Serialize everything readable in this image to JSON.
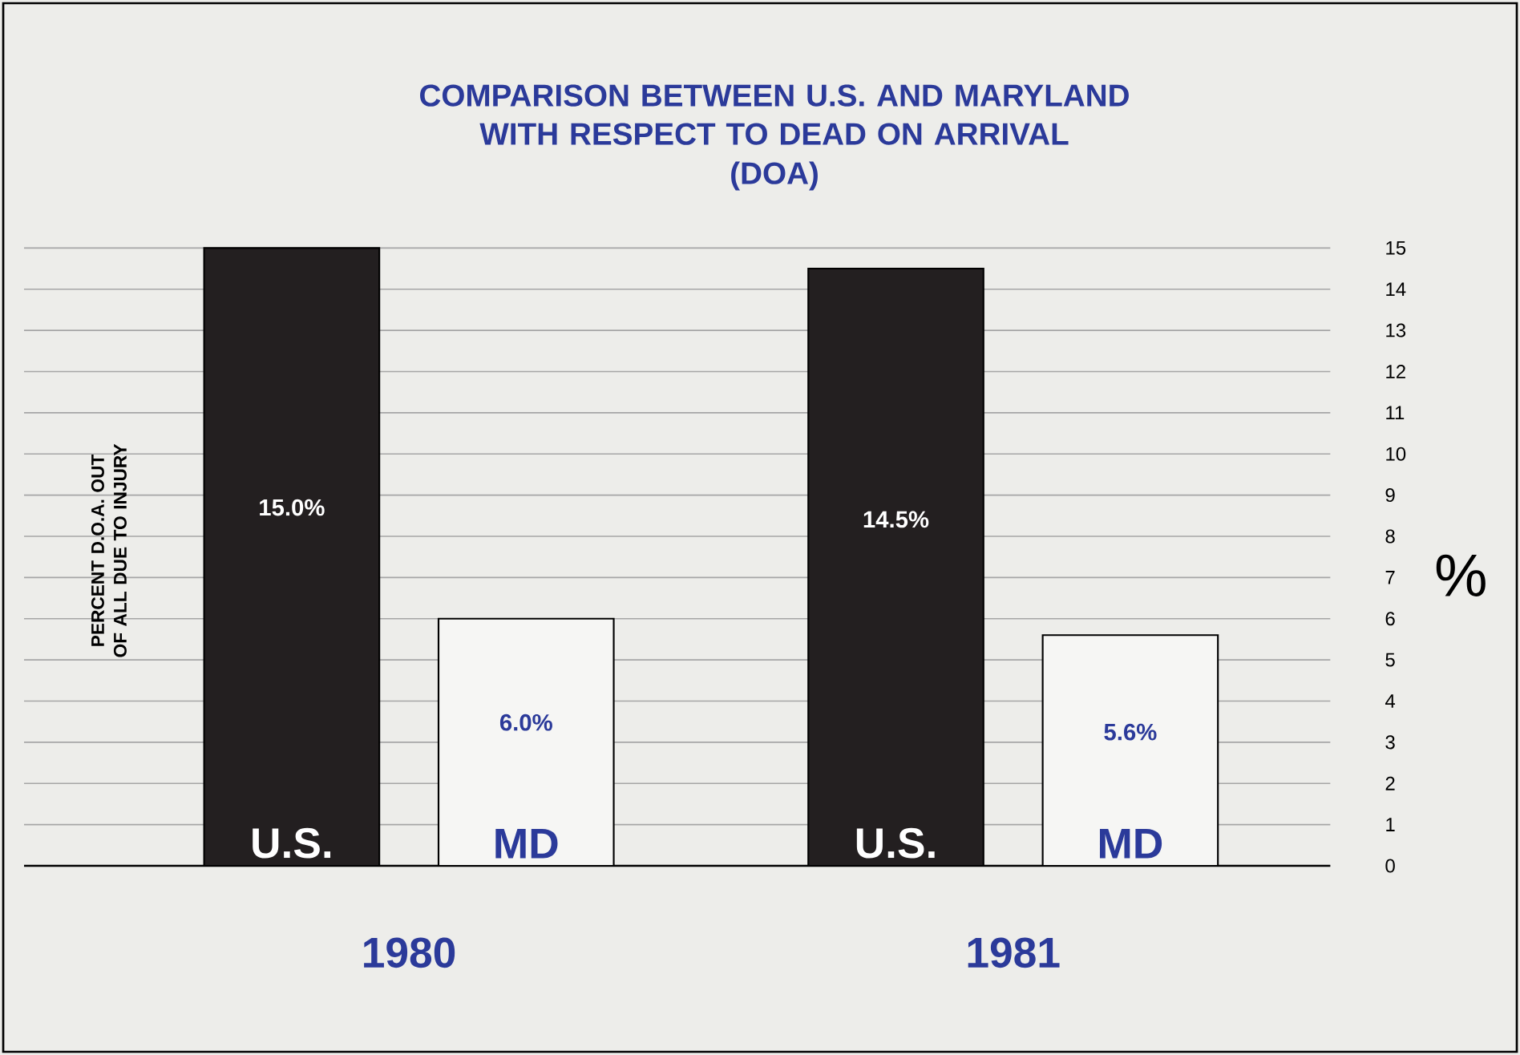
{
  "chart_data": {
    "type": "bar",
    "title": "COMPARISON BETWEEN U.S. AND MARYLAND WITH RESPECT TO DEAD ON ARRIVAL",
    "subtitle": "(DOA)",
    "ylabel": "PERCENT D.O.A. OUT OF ALL DUE TO INJURY",
    "y2label": "%",
    "categories": [
      "1980",
      "1981"
    ],
    "series": [
      {
        "name": "U.S.",
        "color": "#231f20",
        "values": [
          15.0,
          14.5
        ],
        "value_labels": [
          "15.0%",
          "14.5%"
        ]
      },
      {
        "name": "MD",
        "color": "#f6f6f4",
        "values": [
          6.0,
          5.6
        ],
        "value_labels": [
          "6.0%",
          "5.6%"
        ]
      }
    ],
    "ylim": [
      0,
      15
    ],
    "yticks": [
      0,
      1,
      2,
      3,
      4,
      5,
      6,
      7,
      8,
      9,
      10,
      11,
      12,
      13,
      14,
      15
    ],
    "grid": "y"
  }
}
